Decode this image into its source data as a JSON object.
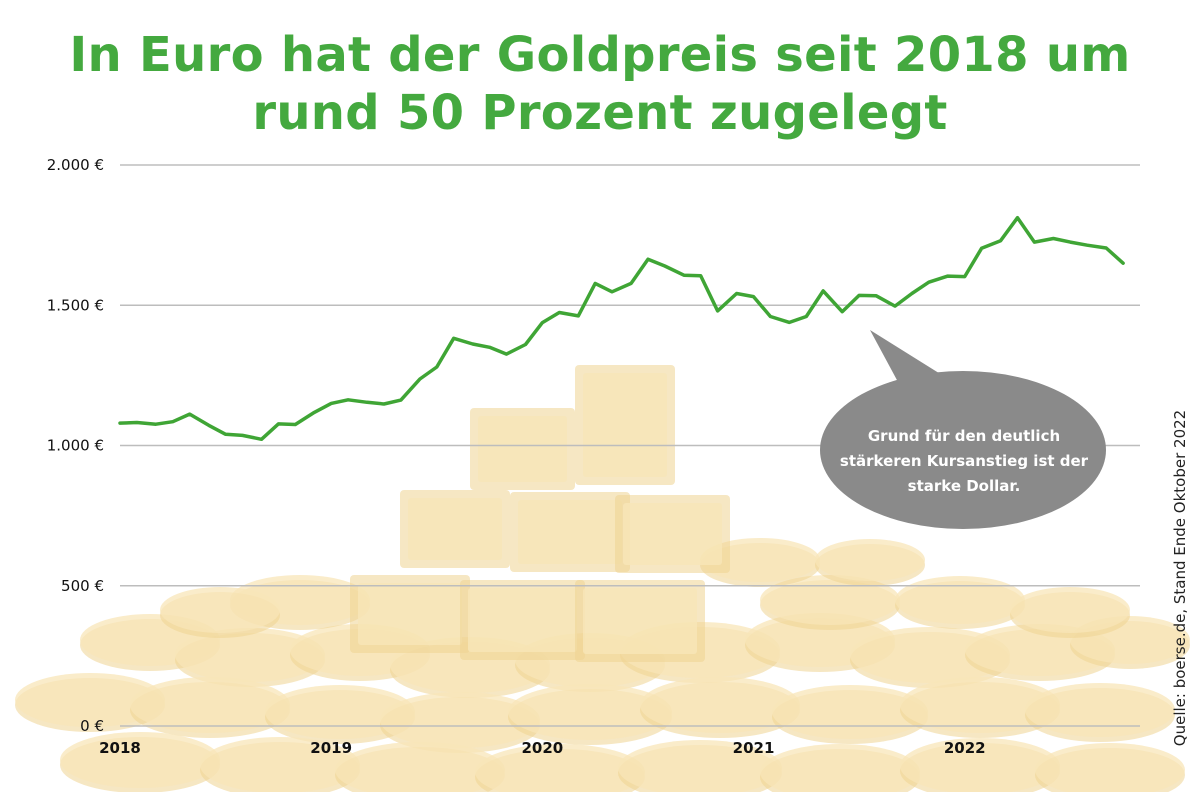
{
  "chart_data": {
    "type": "line",
    "title_lines": [
      "In Euro hat der Goldpreis seit 2018 um",
      "rund 50 Prozent zugelegt"
    ],
    "xlabel": "",
    "ylabel": "",
    "x_tick_labels": [
      "2018",
      "2019",
      "2020",
      "2021",
      "2022"
    ],
    "y_tick_labels": [
      "2.000 €",
      "1.500 €",
      "1.000 €",
      "500 €",
      "0 €"
    ],
    "y_ticks": [
      2000,
      1500,
      1000,
      500,
      0
    ],
    "ylim": [
      0,
      2000
    ],
    "xlim": [
      2018.0,
      2022.83
    ],
    "grid": true,
    "legend": "none",
    "series": [
      {
        "color": "#3fa535",
        "points": [
          [
            2018.0,
            1080
          ],
          [
            2018.08,
            1082
          ],
          [
            2018.17,
            1076
          ],
          [
            2018.25,
            1085
          ],
          [
            2018.33,
            1112
          ],
          [
            2018.42,
            1072
          ],
          [
            2018.5,
            1040
          ],
          [
            2018.58,
            1036
          ],
          [
            2018.67,
            1022
          ],
          [
            2018.75,
            1077
          ],
          [
            2018.83,
            1075
          ],
          [
            2018.92,
            1118
          ],
          [
            2019.0,
            1150
          ],
          [
            2019.08,
            1163
          ],
          [
            2019.17,
            1154
          ],
          [
            2019.25,
            1148
          ],
          [
            2019.33,
            1162
          ],
          [
            2019.42,
            1237
          ],
          [
            2019.5,
            1280
          ],
          [
            2019.58,
            1382
          ],
          [
            2019.67,
            1362
          ],
          [
            2019.75,
            1350
          ],
          [
            2019.83,
            1326
          ],
          [
            2019.92,
            1360
          ],
          [
            2020.0,
            1438
          ],
          [
            2020.08,
            1474
          ],
          [
            2020.17,
            1462
          ],
          [
            2020.25,
            1578
          ],
          [
            2020.33,
            1548
          ],
          [
            2020.42,
            1578
          ],
          [
            2020.5,
            1664
          ],
          [
            2020.58,
            1640
          ],
          [
            2020.67,
            1607
          ],
          [
            2020.75,
            1605
          ],
          [
            2020.83,
            1480
          ],
          [
            2020.92,
            1542
          ],
          [
            2021.0,
            1531
          ],
          [
            2021.08,
            1460
          ],
          [
            2021.17,
            1439
          ],
          [
            2021.25,
            1460
          ],
          [
            2021.33,
            1551
          ],
          [
            2021.42,
            1477
          ],
          [
            2021.5,
            1535
          ],
          [
            2021.58,
            1534
          ],
          [
            2021.67,
            1497
          ],
          [
            2021.75,
            1542
          ],
          [
            2021.83,
            1582
          ],
          [
            2021.92,
            1604
          ],
          [
            2022.0,
            1602
          ],
          [
            2022.08,
            1703
          ],
          [
            2022.17,
            1730
          ],
          [
            2022.25,
            1812
          ],
          [
            2022.33,
            1725
          ],
          [
            2022.42,
            1738
          ],
          [
            2022.5,
            1725
          ],
          [
            2022.58,
            1714
          ],
          [
            2022.67,
            1704
          ],
          [
            2022.75,
            1650
          ]
        ]
      }
    ],
    "annotations": [
      {
        "text": "Grund für den deutlich stärkeren Kursanstieg ist der starke Dollar."
      }
    ]
  },
  "source_note": "Quelle: boerse.de, Stand Ende Oktober 2022",
  "colors": {
    "title": "#44a93f",
    "line": "#3fa535",
    "gridline": "#bdbdbd",
    "callout": "#8a8a8a",
    "gold_light": "#f8e6b8",
    "gold_mid": "#efd392"
  },
  "background": {
    "illustration": "gold-bars-and-coins"
  }
}
